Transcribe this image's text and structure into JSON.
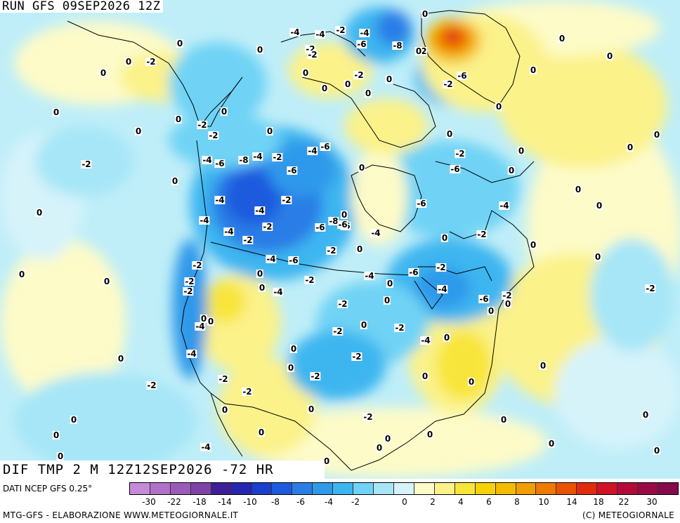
{
  "header": {
    "run_label": "RUN GFS 09SEP2026 12Z"
  },
  "field": {
    "label": "DIF TMP 2 M 12Z12SEP2026 -72 HR"
  },
  "footer": {
    "source": "DATI NCEP GFS 0.25°",
    "credit_left": "MTG-GFS - ELABORAZIONE WWW.METEOGIORNALE.IT",
    "credit_right": "(C) METEOGIORNALE"
  },
  "colorbar": {
    "colors": [
      "#c78ad9",
      "#b071c9",
      "#9a5ab8",
      "#7d43a6",
      "#3d1f9a",
      "#2626b3",
      "#1a3fcc",
      "#1c5ade",
      "#2b7de6",
      "#2f99ea",
      "#3cb6f0",
      "#6fd3f5",
      "#a6e6f7",
      "#d6f3fa",
      "#fdfbc8",
      "#fbf28a",
      "#f8e53a",
      "#f6d20b",
      "#f5bb00",
      "#f29d00",
      "#ee7a00",
      "#ea5200",
      "#e02b0f",
      "#cf1325",
      "#b50a37",
      "#9a0a45",
      "#860a4e"
    ],
    "ticks": [
      "-30",
      "-22",
      "-18",
      "-14",
      "-10",
      "-8",
      "-6",
      "-4",
      "-2",
      "0",
      "2",
      "4",
      "6",
      "8",
      "10",
      "14",
      "18",
      "22",
      "30"
    ]
  },
  "map": {
    "contour_values": [
      "-4",
      "-4",
      "-2",
      "-4",
      "-2",
      "-6",
      "-8",
      "-2",
      "-6",
      "-2",
      "-2",
      "-6",
      "-2",
      "-4",
      "-6",
      "-8",
      "-4",
      "-6",
      "-2",
      "-4",
      "-6",
      "-2",
      "-4",
      "-2",
      "-4",
      "-2",
      "-2",
      "-4",
      "-4",
      "-6",
      "-8",
      "-6",
      "-6",
      "-6",
      "-4",
      "-2",
      "-2",
      "-4",
      "-4",
      "-6",
      "-4",
      "-2",
      "-6",
      "-4",
      "-2",
      "-4",
      "-6",
      "-2",
      "-2",
      "-2",
      "-2",
      "-2",
      "-4",
      "-4",
      "-2",
      "-2",
      "-2",
      "-4",
      "-2",
      "-2",
      "-2",
      "-2",
      "-2",
      "-2",
      "-4",
      "-2",
      "-2",
      "-2",
      "-2",
      "0",
      "0",
      "0",
      "0",
      "0",
      "0",
      "0",
      "0",
      "0",
      "0",
      "0",
      "0",
      "0",
      "0",
      "0",
      "0",
      "0",
      "0",
      "0",
      "0",
      "0",
      "0",
      "0",
      "0",
      "0",
      "0",
      "0",
      "0",
      "0",
      "0",
      "0",
      "0",
      "0",
      "0",
      "0",
      "0",
      "0",
      "0",
      "0",
      "0",
      "0",
      "0",
      "0",
      "0",
      "0",
      "0",
      "0",
      "0",
      "0",
      "0",
      "0",
      "0",
      "0",
      "0",
      "0",
      "0",
      "0",
      "0",
      "0",
      "0",
      "0",
      "0",
      "0",
      "0",
      "0",
      "0",
      "0",
      "0",
      "0",
      "0",
      "0",
      "0",
      "0",
      "0",
      "0",
      "0",
      "0",
      "0",
      "0",
      "0",
      "0",
      "0"
    ]
  }
}
